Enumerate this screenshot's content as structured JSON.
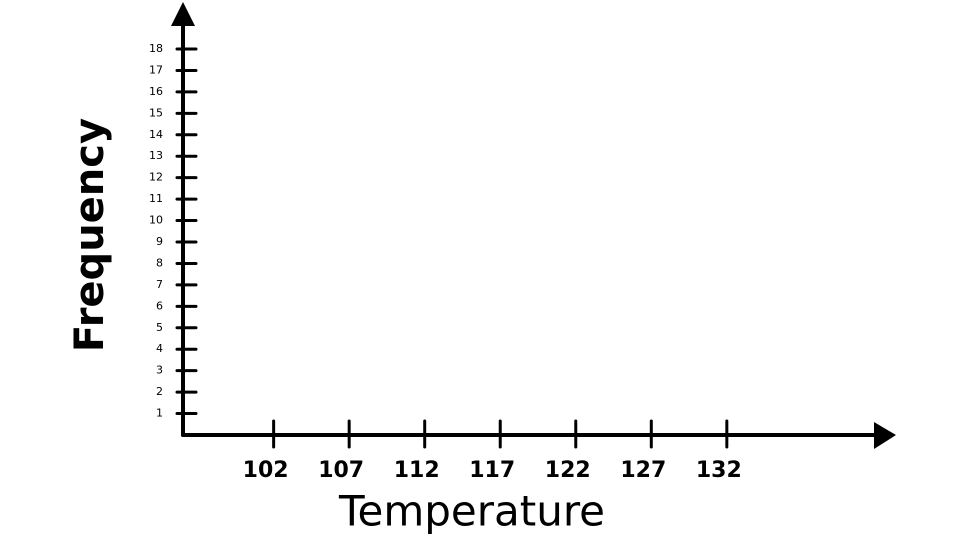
{
  "chart_data": {
    "type": "histogram",
    "xlabel": "Temperature",
    "ylabel": "Frequency",
    "xlim": [
      96,
      143
    ],
    "xticks": [
      102,
      107,
      112,
      117,
      122,
      127,
      132
    ],
    "ylim": [
      0,
      18
    ],
    "yticks": [
      1,
      2,
      3,
      4,
      5,
      6,
      7,
      8,
      9,
      10,
      11,
      12,
      13,
      14,
      15,
      16,
      17,
      18
    ]
  }
}
